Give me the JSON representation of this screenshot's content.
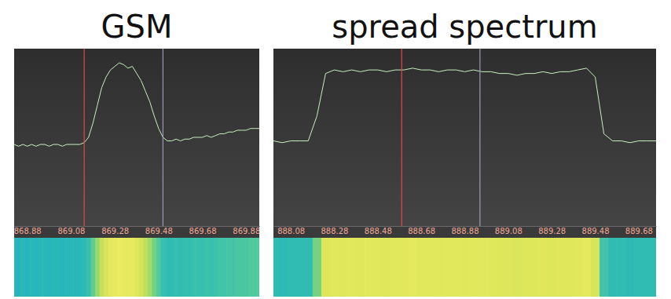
{
  "chart_data": [
    {
      "type": "line",
      "title": "GSM",
      "x": [
        868.82,
        868.84,
        868.86,
        868.88,
        868.9,
        868.92,
        868.94,
        868.96,
        868.98,
        869,
        869.02,
        869.04,
        869.06,
        869.08,
        869.1,
        869.12,
        869.14,
        869.16,
        869.18,
        869.2,
        869.22,
        869.24,
        869.26,
        869.28,
        869.3,
        869.32,
        869.34,
        869.36,
        869.38,
        869.4,
        869.42,
        869.44,
        869.46,
        869.48,
        869.5,
        869.52,
        869.54,
        869.56,
        869.58,
        869.6,
        869.62,
        869.64,
        869.66,
        869.68,
        869.7,
        869.72,
        869.74,
        869.76,
        869.78,
        869.8,
        869.82,
        869.84,
        869.86,
        869.88,
        869.9,
        869.92,
        869.94
      ],
      "values": [
        46,
        45,
        46,
        45,
        46,
        45,
        46,
        46,
        45,
        46,
        46,
        45,
        46,
        46,
        46,
        46,
        47,
        50,
        58,
        68,
        78,
        84,
        88,
        90,
        92,
        91,
        89,
        90,
        86,
        82,
        76,
        70,
        62,
        55,
        50,
        48,
        48,
        49,
        48,
        49,
        49,
        50,
        50,
        50,
        51,
        50,
        51,
        52,
        52,
        53,
        53,
        54,
        54,
        54,
        55,
        55,
        55
      ],
      "color": "#c8f0c0",
      "xlim": [
        868.82,
        869.94
      ],
      "ylim": [
        0,
        100
      ],
      "xticks": [
        868.88,
        869.08,
        869.28,
        869.48,
        869.68,
        869.88
      ],
      "tick_labels": "x",
      "cursors": [
        {
          "value": 869.14,
          "color": "#e04848"
        },
        {
          "value": 869.5,
          "color": "#9a9ab8"
        }
      ]
    },
    {
      "type": "line",
      "title": "spread spectrum",
      "x": [
        888,
        888.04,
        888.08,
        888.12,
        888.16,
        888.2,
        888.24,
        888.28,
        888.32,
        888.36,
        888.4,
        888.44,
        888.48,
        888.52,
        888.56,
        888.6,
        888.64,
        888.68,
        888.72,
        888.76,
        888.8,
        888.84,
        888.88,
        888.92,
        888.96,
        889,
        889.04,
        889.08,
        889.12,
        889.16,
        889.2,
        889.24,
        889.28,
        889.32,
        889.36,
        889.4,
        889.44,
        889.48,
        889.52,
        889.56,
        889.6,
        889.64,
        889.68,
        889.72,
        889.76
      ],
      "values": [
        48,
        47,
        48,
        48,
        48,
        62,
        86,
        88,
        87,
        88,
        87,
        88,
        88,
        87,
        88,
        88,
        89,
        88,
        88,
        87,
        88,
        88,
        87,
        88,
        87,
        87,
        86,
        86,
        85,
        86,
        86,
        87,
        86,
        87,
        87,
        88,
        89,
        84,
        52,
        48,
        48,
        47,
        48,
        48,
        48
      ],
      "color": "#c8f0c0",
      "xlim": [
        888,
        889.76
      ],
      "ylim": [
        0,
        100
      ],
      "xticks": [
        888.08,
        888.28,
        888.48,
        888.68,
        888.88,
        889.08,
        889.28,
        889.48,
        889.68
      ],
      "tick_labels": "x",
      "cursors": [
        {
          "value": 888.59,
          "color": "#e04848"
        },
        {
          "value": 888.95,
          "color": "#9a9ab8"
        }
      ]
    }
  ]
}
